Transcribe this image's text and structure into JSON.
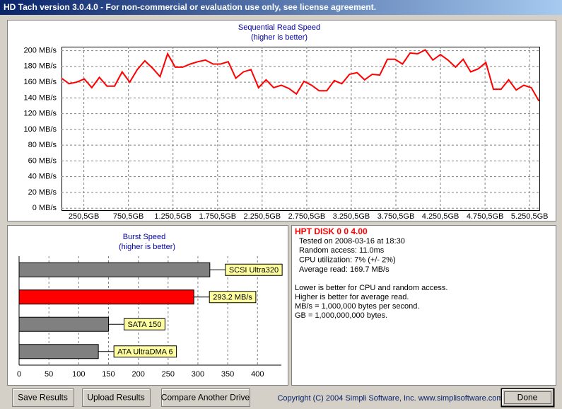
{
  "window": {
    "title": "HD Tach version 3.0.4.0  - For non-commercial or evaluation use only, see license agreement."
  },
  "chart_data": [
    {
      "type": "line",
      "title": "Sequential Read Speed",
      "subtitle": "(higher is better)",
      "color": "#ff0000",
      "grid": true,
      "x": [
        0,
        85,
        170,
        255,
        340,
        425,
        510,
        595,
        680,
        765,
        850,
        935,
        1020,
        1105,
        1190,
        1275,
        1360,
        1445,
        1530,
        1615,
        1700,
        1785,
        1870,
        1955,
        2040,
        2125,
        2210,
        2295,
        2380,
        2465,
        2550,
        2635,
        2720,
        2805,
        2890,
        2975,
        3060,
        3145,
        3230,
        3315,
        3400,
        3485,
        3570,
        3655,
        3740,
        3825,
        3910,
        3995,
        4080,
        4165,
        4250,
        4335,
        4420,
        4505,
        4590,
        4675,
        4760,
        4845,
        4930,
        5015,
        5100,
        5185,
        5270,
        5355
      ],
      "values": [
        165,
        158,
        160,
        164,
        153,
        166,
        155,
        155,
        173,
        160,
        176,
        187,
        178,
        167,
        196,
        179,
        179,
        183,
        186,
        188,
        183,
        183,
        186,
        165,
        173,
        176,
        153,
        163,
        153,
        156,
        152,
        145,
        161,
        156,
        149,
        149,
        162,
        158,
        170,
        172,
        163,
        170,
        169,
        189,
        189,
        183,
        197,
        196,
        201,
        188,
        195,
        188,
        179,
        189,
        173,
        177,
        185,
        151,
        151,
        163,
        150,
        156,
        153,
        136
      ],
      "xlim": [
        0,
        5360
      ],
      "xticks": [
        {
          "value": 250.5,
          "label": "250,5GB"
        },
        {
          "value": 750.5,
          "label": "750,5GB"
        },
        {
          "value": 1250.5,
          "label": "1.250,5GB"
        },
        {
          "value": 1750.5,
          "label": "1.750,5GB"
        },
        {
          "value": 2250.5,
          "label": "2.250,5GB"
        },
        {
          "value": 2750.5,
          "label": "2.750,5GB"
        },
        {
          "value": 3250.5,
          "label": "3.250,5GB"
        },
        {
          "value": 3750.5,
          "label": "3.750,5GB"
        },
        {
          "value": 4250.5,
          "label": "4.250,5GB"
        },
        {
          "value": 4750.5,
          "label": "4.750,5GB"
        },
        {
          "value": 5250.5,
          "label": "5.250,5GB"
        }
      ],
      "ylim": [
        -2.5,
        205
      ],
      "yticks": [
        {
          "value": 0,
          "label": "0 MB/s"
        },
        {
          "value": 20,
          "label": "20 MB/s"
        },
        {
          "value": 40,
          "label": "40 MB/s"
        },
        {
          "value": 60,
          "label": "60 MB/s"
        },
        {
          "value": 80,
          "label": "80 MB/s"
        },
        {
          "value": 100,
          "label": "100 MB/s"
        },
        {
          "value": 120,
          "label": "120 MB/s"
        },
        {
          "value": 140,
          "label": "140 MB/s"
        },
        {
          "value": 160,
          "label": "160 MB/s"
        },
        {
          "value": 180,
          "label": "180 MB/s"
        },
        {
          "value": 200,
          "label": "200 MB/s"
        }
      ]
    },
    {
      "type": "hbar",
      "title": "Burst Speed",
      "subtitle": "(higher is better)",
      "grid": true,
      "categories": [
        "SCSI Ultra320",
        null,
        "SATA 150",
        "ATA UltraDMA 6"
      ],
      "values": [
        320,
        293.2,
        150,
        133
      ],
      "value_labels": [
        null,
        "293.2 MB/s",
        null,
        null
      ],
      "colors": [
        "#808080",
        "#ff0000",
        "#808080",
        "#808080"
      ],
      "xlim": [
        0,
        440
      ],
      "xticks": [
        0,
        50,
        100,
        150,
        200,
        250,
        300,
        350,
        400
      ]
    }
  ],
  "info": {
    "title": "HPT DISK 0 0 4.00",
    "details": [
      "Tested on 2008-03-16 at 18:30",
      "Random access: 11.0ms",
      "CPU utilization: 7% (+/- 2%)",
      "Average read: 169.7 MB/s"
    ],
    "notes": [
      "Lower is better for CPU and random access.",
      "Higher is better for average read.",
      "MB/s = 1,000,000 bytes per second.",
      "GB = 1,000,000,000 bytes."
    ]
  },
  "buttons": [
    "Save Results",
    "Upload Results",
    "Compare Another Drive",
    "Done"
  ],
  "copyright": "Copyright (C) 2004 Simpli Software, Inc. www.simplisoftware.com"
}
